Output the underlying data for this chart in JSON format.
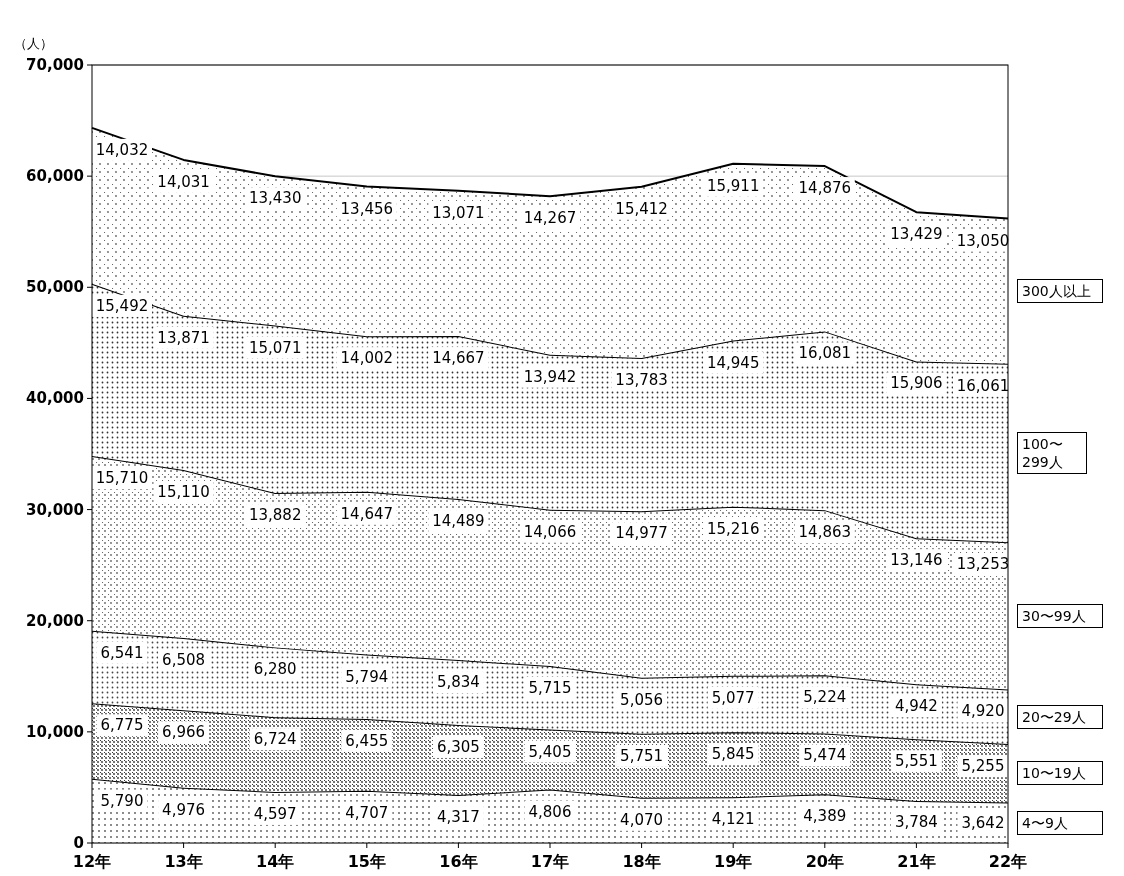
{
  "chart_data": {
    "type": "area",
    "stacked": true,
    "ylabel": "（人）",
    "categories": [
      "12年",
      "13年",
      "14年",
      "15年",
      "16年",
      "17年",
      "18年",
      "19年",
      "20年",
      "21年",
      "22年"
    ],
    "series": [
      {
        "name": "4〜9人",
        "color": "#555555",
        "values": [
          5790,
          4976,
          4597,
          4707,
          4317,
          4806,
          4070,
          4121,
          4389,
          3784,
          3642
        ],
        "value_labels": [
          "5,790",
          "4,976",
          "4,597",
          "4,707",
          "4,317",
          "4,806",
          "4,070",
          "4,121",
          "4,389",
          "3,784",
          "3,642"
        ]
      },
      {
        "name": "10〜19人",
        "color": "#333333",
        "values": [
          6775,
          6966,
          6724,
          6455,
          6305,
          5405,
          5751,
          5845,
          5474,
          5551,
          5255
        ],
        "value_labels": [
          "6,775",
          "6,966",
          "6,724",
          "6,455",
          "6,305",
          "5,405",
          "5,751",
          "5,845",
          "5,474",
          "5,551",
          "5,255"
        ]
      },
      {
        "name": "20〜29人",
        "color": "#444444",
        "values": [
          6541,
          6508,
          6280,
          5794,
          5834,
          5715,
          5056,
          5077,
          5224,
          4942,
          4920
        ],
        "value_labels": [
          "6,541",
          "6,508",
          "6,280",
          "5,794",
          "5,834",
          "5,715",
          "5,056",
          "5,077",
          "5,224",
          "4,942",
          "4,920"
        ]
      },
      {
        "name": "30〜99人",
        "color": "#666666",
        "values": [
          15710,
          15110,
          13882,
          14647,
          14489,
          14066,
          14977,
          15216,
          14863,
          13146,
          13253
        ],
        "value_labels": [
          "15,710",
          "15,110",
          "13,882",
          "14,647",
          "14,489",
          "14,066",
          "14,977",
          "15,216",
          "14,863",
          "13,146",
          "13,253"
        ]
      },
      {
        "name": "100〜299人",
        "color": "#333333",
        "values": [
          15492,
          13871,
          15071,
          14002,
          14667,
          13942,
          13783,
          14945,
          16081,
          15906,
          16061
        ],
        "value_labels": [
          "15,492",
          "13,871",
          "15,071",
          "14,002",
          "14,667",
          "13,942",
          "13,783",
          "14,945",
          "16,081",
          "15,906",
          "16,061"
        ]
      },
      {
        "name": "300人以上",
        "color": "#666666",
        "values": [
          14032,
          14031,
          13430,
          13456,
          13071,
          14267,
          15412,
          15911,
          14876,
          13429,
          13050
        ],
        "value_labels": [
          "14,032",
          "14,031",
          "13,430",
          "13,456",
          "13,071",
          "14,267",
          "15,412",
          "15,911",
          "14,876",
          "13,429",
          "13,050"
        ]
      }
    ],
    "ylim": [
      0,
      70000
    ],
    "yticks": [
      {
        "value": 0,
        "label": "0"
      },
      {
        "value": 10000,
        "label": "10,000"
      },
      {
        "value": 20000,
        "label": "20,000"
      },
      {
        "value": 30000,
        "label": "30,000"
      },
      {
        "value": 40000,
        "label": "40,000"
      },
      {
        "value": 50000,
        "label": "50,000"
      },
      {
        "value": 60000,
        "label": "60,000"
      },
      {
        "value": 70000,
        "label": "70,000"
      }
    ],
    "grid": "y",
    "legend": "right"
  }
}
